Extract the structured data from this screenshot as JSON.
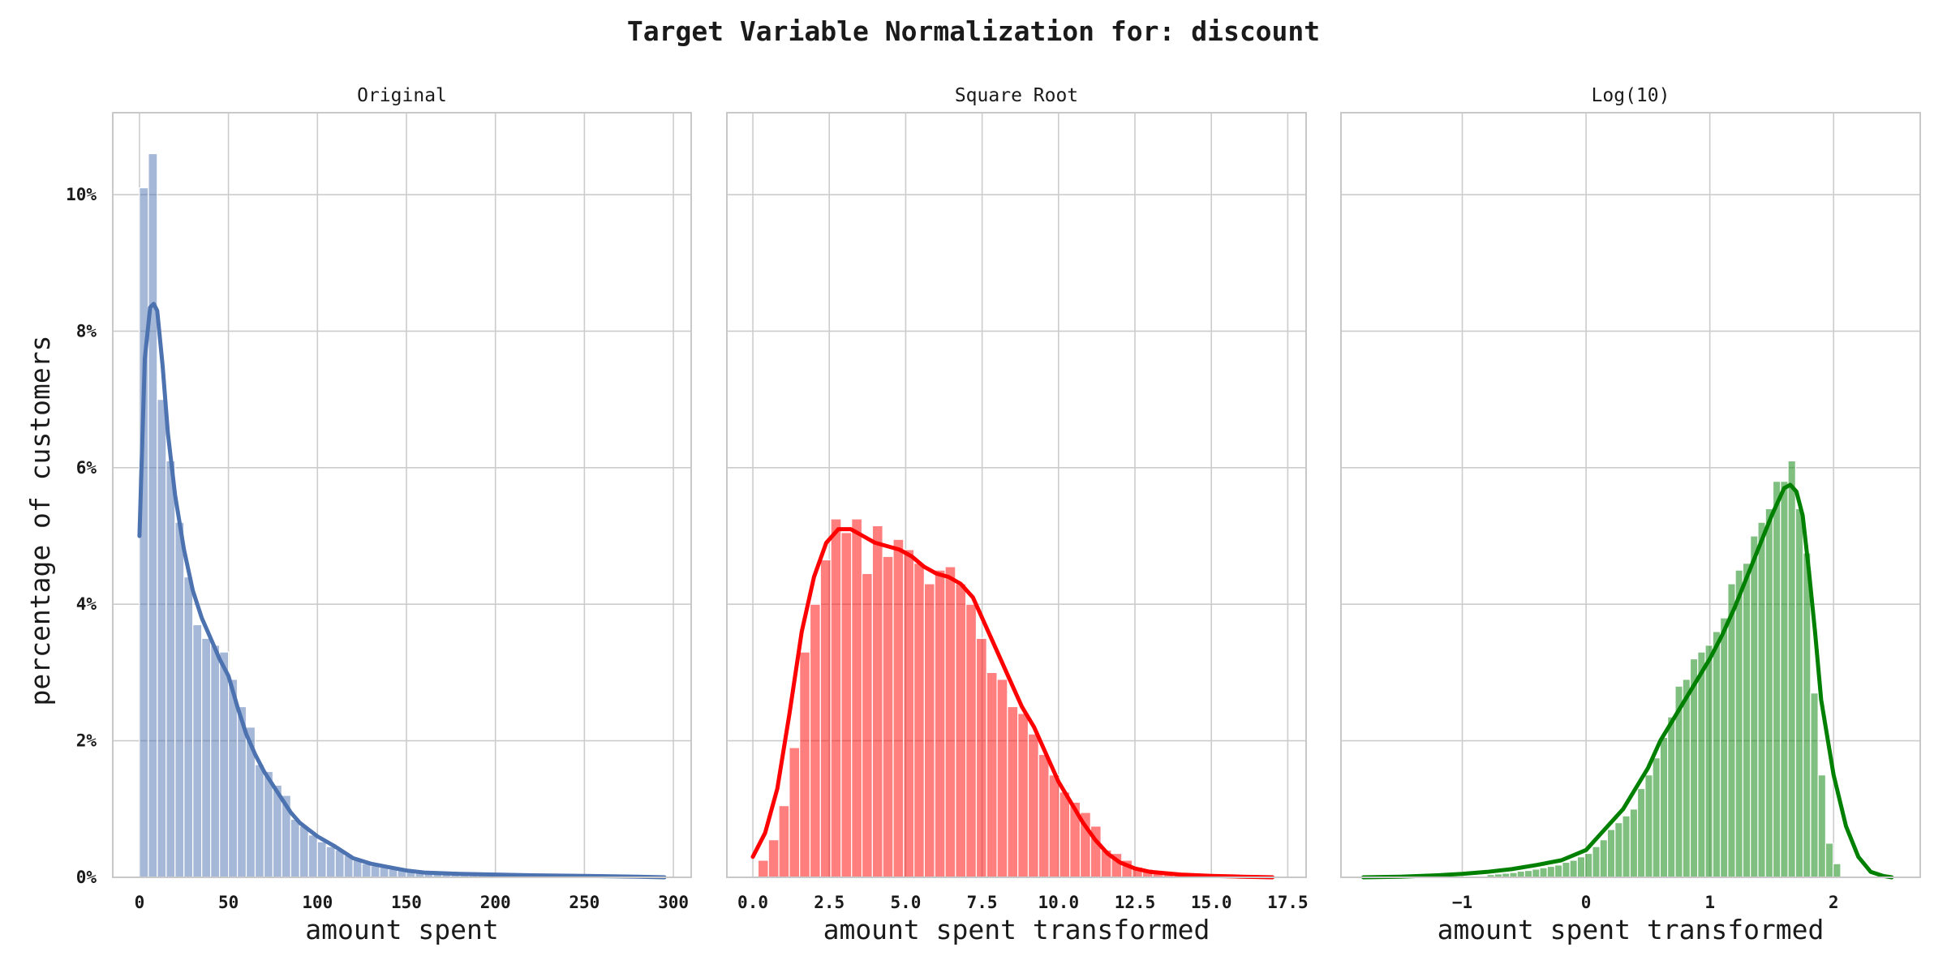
{
  "figure": {
    "title": "Target Variable Normalization for: discount",
    "ylabel": "percentage of customers"
  },
  "chart_data": [
    {
      "type": "histogram",
      "title": "Original",
      "xlabel": "amount spent",
      "ylabel": "percentage of customers",
      "xlim": [
        -15,
        310
      ],
      "ylim": [
        0,
        11.2
      ],
      "xticks": [
        0,
        50,
        100,
        150,
        200,
        250,
        300
      ],
      "xtick_labels": [
        "0",
        "50",
        "100",
        "150",
        "200",
        "250",
        "300"
      ],
      "yticks": [
        0,
        2,
        4,
        6,
        8,
        10
      ],
      "ytick_labels": [
        "0%",
        "2%",
        "4%",
        "6%",
        "8%",
        "10%"
      ],
      "grid": true,
      "bar_color": "#4c72b0",
      "line_color": "#4c72b0",
      "bin_start": 0,
      "bin_width": 5,
      "bins_percent": [
        10.1,
        10.6,
        7.0,
        6.1,
        5.2,
        4.4,
        3.7,
        3.5,
        3.4,
        3.3,
        2.9,
        2.5,
        2.2,
        1.65,
        1.55,
        1.35,
        1.2,
        0.85,
        0.75,
        0.62,
        0.52,
        0.45,
        0.4,
        0.32,
        0.25,
        0.2,
        0.17,
        0.15,
        0.12,
        0.1,
        0.09,
        0.08,
        0.07,
        0.06,
        0.05,
        0.05,
        0.04,
        0.04,
        0.03,
        0.03,
        0.03,
        0.02,
        0.02,
        0.02,
        0.02,
        0.02,
        0.01,
        0.01,
        0.01,
        0.01,
        0.01,
        0.01,
        0.01,
        0.01,
        0.01,
        0.01,
        0.01,
        0.01,
        0.01
      ],
      "kde_x": [
        0,
        3,
        6,
        8,
        10,
        13,
        16,
        20,
        25,
        30,
        35,
        40,
        45,
        50,
        55,
        60,
        65,
        70,
        75,
        80,
        85,
        90,
        95,
        100,
        110,
        120,
        130,
        140,
        150,
        160,
        180,
        200,
        220,
        250,
        280,
        295
      ],
      "kde_y": [
        5.0,
        7.6,
        8.35,
        8.4,
        8.3,
        7.5,
        6.5,
        5.6,
        4.8,
        4.2,
        3.8,
        3.5,
        3.2,
        2.95,
        2.5,
        2.1,
        1.8,
        1.55,
        1.35,
        1.15,
        0.95,
        0.8,
        0.7,
        0.6,
        0.45,
        0.28,
        0.2,
        0.15,
        0.1,
        0.07,
        0.05,
        0.04,
        0.03,
        0.02,
        0.01,
        0.0
      ]
    },
    {
      "type": "histogram",
      "title": "Square Root",
      "xlabel": "amount spent transformed",
      "ylabel": "",
      "xlim": [
        -0.85,
        18.1
      ],
      "ylim": [
        0,
        11.2
      ],
      "xticks": [
        0,
        2.5,
        5,
        7.5,
        10,
        12.5,
        15,
        17.5
      ],
      "xtick_labels": [
        "0.0",
        "2.5",
        "5.0",
        "7.5",
        "10.0",
        "12.5",
        "15.0",
        "17.5"
      ],
      "yticks": [
        0,
        2,
        4,
        6,
        8,
        10
      ],
      "ytick_labels": [
        "0%",
        "2%",
        "4%",
        "6%",
        "8%",
        "10%"
      ],
      "grid": true,
      "bar_color": "#ff0000",
      "line_color": "#ff0000",
      "bin_start": 0.17,
      "bin_width": 0.34,
      "bins_percent": [
        0.25,
        0.55,
        1.05,
        1.9,
        3.3,
        4.0,
        4.65,
        5.25,
        5.05,
        5.25,
        4.45,
        5.15,
        4.7,
        4.95,
        4.8,
        4.6,
        4.3,
        4.5,
        4.55,
        4.3,
        4.0,
        3.5,
        3.0,
        2.9,
        2.5,
        2.4,
        2.1,
        1.8,
        1.5,
        1.25,
        1.1,
        0.95,
        0.75,
        0.4,
        0.35,
        0.25,
        0.15,
        0.12,
        0.1,
        0.08,
        0.05
      ],
      "kde_x": [
        0.0,
        0.4,
        0.8,
        1.2,
        1.6,
        2.0,
        2.4,
        2.8,
        3.2,
        3.6,
        4.0,
        4.4,
        4.8,
        5.2,
        5.6,
        6.0,
        6.4,
        6.8,
        7.2,
        7.6,
        8.0,
        8.4,
        8.8,
        9.2,
        9.6,
        10.0,
        10.4,
        10.8,
        11.2,
        11.6,
        12.0,
        12.5,
        13.0,
        14.0,
        15.0,
        16.0,
        17.0
      ],
      "kde_y": [
        0.3,
        0.65,
        1.3,
        2.4,
        3.6,
        4.4,
        4.9,
        5.1,
        5.1,
        5.0,
        4.9,
        4.85,
        4.8,
        4.7,
        4.55,
        4.45,
        4.4,
        4.3,
        4.1,
        3.7,
        3.3,
        2.9,
        2.5,
        2.2,
        1.8,
        1.4,
        1.1,
        0.8,
        0.55,
        0.35,
        0.22,
        0.13,
        0.08,
        0.04,
        0.02,
        0.01,
        0.0
      ]
    },
    {
      "type": "histogram",
      "title": "Log(10)",
      "xlabel": "amount spent transformed",
      "ylabel": "",
      "xlim": [
        -1.98,
        2.7
      ],
      "ylim": [
        0,
        11.2
      ],
      "xticks": [
        -1,
        0,
        1,
        2
      ],
      "xtick_labels": [
        "−1",
        "0",
        "1",
        "2"
      ],
      "yticks": [
        0,
        2,
        4,
        6,
        8,
        10
      ],
      "ytick_labels": [
        "0%",
        "2%",
        "4%",
        "6%",
        "8%",
        "10%"
      ],
      "grid": true,
      "bar_color": "#008000",
      "line_color": "#008000",
      "bin_start": -0.8,
      "bin_width": 0.0608,
      "bins_percent": [
        0.04,
        0.05,
        0.06,
        0.07,
        0.09,
        0.1,
        0.12,
        0.14,
        0.16,
        0.18,
        0.22,
        0.25,
        0.3,
        0.35,
        0.45,
        0.55,
        0.7,
        0.8,
        0.9,
        1.0,
        1.3,
        1.5,
        1.75,
        2.05,
        2.35,
        2.8,
        2.9,
        3.2,
        3.3,
        3.4,
        3.6,
        3.8,
        4.3,
        4.5,
        4.6,
        5.0,
        5.2,
        5.4,
        5.8,
        5.8,
        6.1,
        5.4,
        4.75,
        2.7,
        1.5,
        0.5,
        0.2
      ],
      "kde_x": [
        -1.8,
        -1.5,
        -1.2,
        -1.0,
        -0.8,
        -0.6,
        -0.4,
        -0.2,
        0.0,
        0.1,
        0.2,
        0.3,
        0.4,
        0.5,
        0.6,
        0.7,
        0.8,
        0.9,
        1.0,
        1.1,
        1.2,
        1.3,
        1.4,
        1.5,
        1.6,
        1.65,
        1.7,
        1.75,
        1.8,
        1.85,
        1.9,
        2.0,
        2.1,
        2.2,
        2.3,
        2.4,
        2.47
      ],
      "kde_y": [
        0.0,
        0.01,
        0.03,
        0.05,
        0.08,
        0.12,
        0.18,
        0.25,
        0.4,
        0.6,
        0.8,
        1.0,
        1.3,
        1.6,
        2.0,
        2.3,
        2.6,
        2.9,
        3.2,
        3.55,
        3.95,
        4.4,
        4.85,
        5.3,
        5.7,
        5.75,
        5.65,
        5.3,
        4.5,
        3.6,
        2.6,
        1.5,
        0.75,
        0.3,
        0.08,
        0.02,
        0.0
      ]
    }
  ]
}
